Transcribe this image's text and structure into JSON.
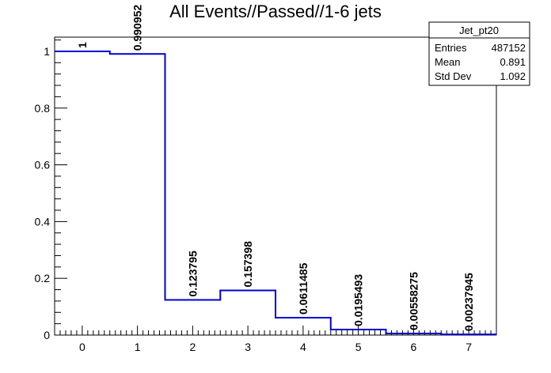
{
  "chart_data": {
    "type": "bar",
    "title": "All Events//Passed//1-6 jets",
    "xlabel": "",
    "ylabel": "",
    "x_ticks": [
      "0",
      "1",
      "2",
      "3",
      "4",
      "5",
      "6",
      "7"
    ],
    "y_ticks": [
      "0",
      "0.2",
      "0.4",
      "0.6",
      "0.8",
      "1"
    ],
    "xlim": [
      -0.5,
      7.5
    ],
    "ylim": [
      0,
      1.05
    ],
    "bins": [
      0,
      1,
      2,
      3,
      4,
      5,
      6,
      7
    ],
    "values": [
      1,
      0.990952,
      0.123795,
      0.157398,
      0.0611485,
      0.0195493,
      0.00558275,
      0.00237945
    ],
    "labels": [
      "1",
      "0.990952",
      "0.123795",
      "0.157398",
      "0.0611485",
      "0.0195493",
      "0.00558275",
      "0.00237945"
    ],
    "line_color": "#0000cc",
    "stats": {
      "name": "Jet_pt20",
      "rows": [
        {
          "label": "Entries",
          "value": "487152"
        },
        {
          "label": "Mean",
          "value": "0.891"
        },
        {
          "label": "Std Dev",
          "value": "1.092"
        }
      ]
    }
  }
}
